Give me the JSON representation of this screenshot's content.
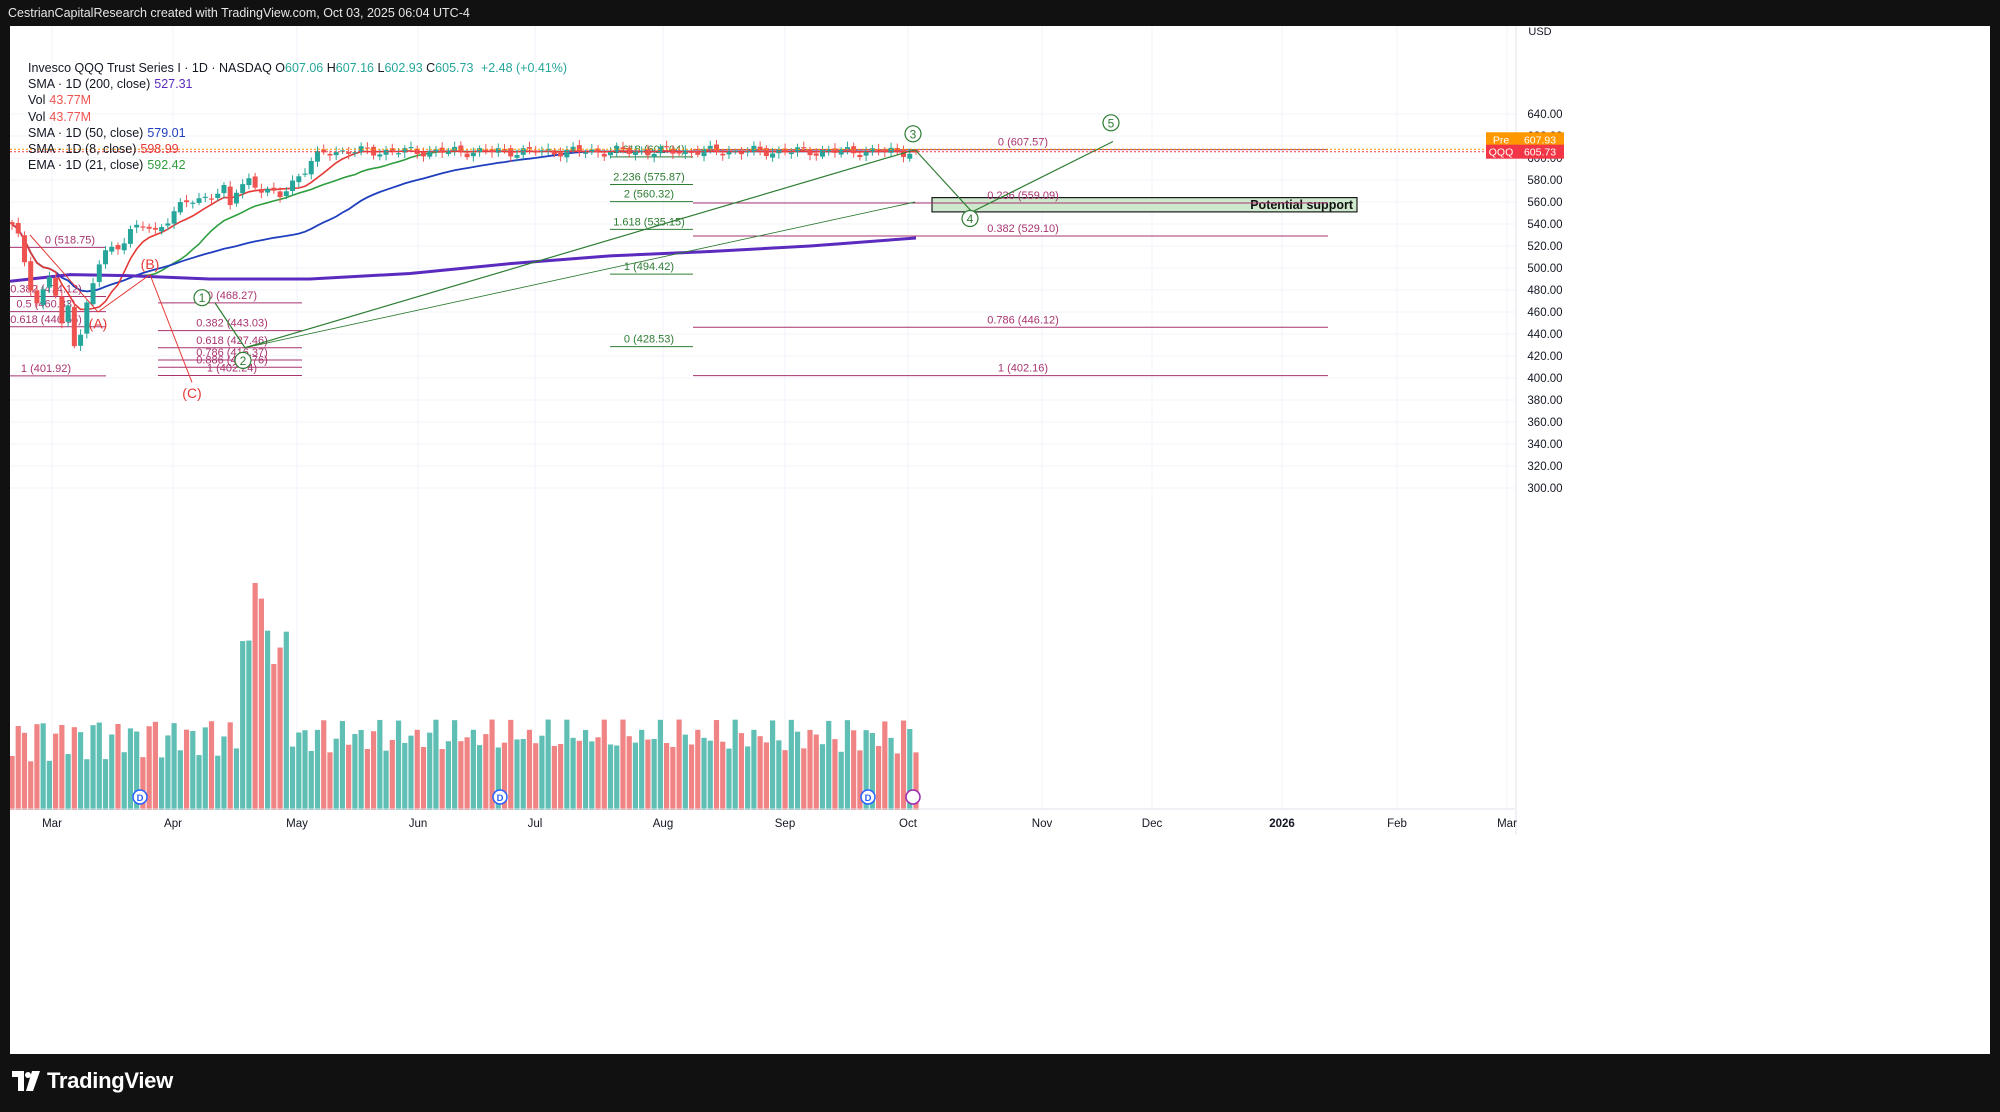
{
  "header": {
    "attribution": "CestrianCapitalResearch created with TradingView.com, Oct 03, 2025 06:04 UTC-4"
  },
  "legend": {
    "title": "Invesco QQQ Trust Series I · 1D · NASDAQ",
    "ohlc": [
      {
        "k": "O",
        "v": "607.06"
      },
      {
        "k": "H",
        "v": "607.16"
      },
      {
        "k": "L",
        "v": "602.93"
      },
      {
        "k": "C",
        "v": "605.73"
      }
    ],
    "change": "+2.48 (+0.41%)",
    "rows": [
      {
        "label": "SMA · 1D (200, close)",
        "value": "527.31",
        "color": "#5b2bbf"
      },
      {
        "label": "Vol",
        "value": "43.77M",
        "color": "#ef5350"
      },
      {
        "label": "Vol",
        "value": "43.77M",
        "color": "#ef5350"
      },
      {
        "label": "SMA · 1D (50, close)",
        "value": "579.01",
        "color": "#1f3fbf"
      },
      {
        "label": "SMA · 1D (8, close)",
        "value": "598.99",
        "color": "#e53935"
      },
      {
        "label": "EMA · 1D (21, close)",
        "value": "592.42",
        "color": "#2e9e3e"
      }
    ]
  },
  "axis": {
    "currency": "USD",
    "price_ticks": [
      "640.00",
      "620.00",
      "600.00",
      "580.00",
      "560.00",
      "540.00",
      "520.00",
      "500.00",
      "480.00",
      "460.00",
      "440.00",
      "420.00",
      "400.00",
      "380.00",
      "360.00",
      "340.00",
      "320.00",
      "300.00"
    ],
    "month_labels": [
      "Mar",
      "Apr",
      "May",
      "Jun",
      "Jul",
      "Aug",
      "Sep",
      "Oct",
      "Nov",
      "Dec",
      "2026",
      "Feb",
      "Mar"
    ],
    "tags": [
      {
        "name": "Pre",
        "value": "607.93",
        "color": "#ff9800"
      },
      {
        "name": "QQQ",
        "value": "605.73",
        "color": "#f23645"
      }
    ]
  },
  "annotations": {
    "support_label": "Potential support",
    "wave_labels": [
      "①",
      "②",
      "③",
      "④",
      "⑤",
      "(A)",
      "(B)",
      "(C)"
    ],
    "fib_left": [
      "0 (518.75)",
      "0.382 (474.12)",
      "0.5 (460.33)",
      "0.618 (446.55)",
      "1 (401.92)"
    ],
    "fib_mid": [
      "0 (468.27)",
      "0.382 (443.03)",
      "0.618 (427.46)",
      "0.786 (416.37)",
      "0.886 (409.76)",
      "1 (402.24)"
    ],
    "fib_ext": [
      "2.618 (601.04)",
      "2.236 (575.87)",
      "2 (560.32)",
      "1.618 (535.15)",
      "1 (494.42)",
      "0 (428.53)"
    ],
    "fib_right": [
      "0 (607.57)",
      "0.236 (559.09)",
      "0.382 (529.10)",
      "0.786 (446.12)",
      "1 (402.16)"
    ],
    "dividend_marker": "D"
  },
  "brand": {
    "name": "TradingView"
  },
  "colors": {
    "up": "#26a69a",
    "down": "#ef5350",
    "vol_up": "#5fbfb4",
    "vol_down": "#f08383",
    "sma200": "#5b2bbf",
    "sma50": "#1f3fbf",
    "sma8": "#e53935",
    "ema21": "#2e9e3e",
    "fib": "#a8336f",
    "wave_green": "#2e7d32",
    "wave_red": "#e53935",
    "support_fill": "#cde8cc"
  },
  "chart_data": {
    "type": "candlestick",
    "title": "Invesco QQQ Trust Series I · 1D · NASDAQ",
    "ylabel": "USD",
    "ylim": [
      300,
      645
    ],
    "grid": true,
    "y_scale": "linear",
    "x_months": [
      "Mar",
      "Apr",
      "May",
      "Jun",
      "Jul",
      "Aug",
      "Sep",
      "Oct",
      "Nov",
      "Dec",
      "2026",
      "Feb",
      "Mar"
    ],
    "close_key_points": [
      {
        "date": "2025-02-21",
        "close": 538.0
      },
      {
        "date": "2025-03-13",
        "close": 468.0
      },
      {
        "date": "2025-03-25",
        "close": 494.0
      },
      {
        "date": "2025-04-08",
        "close": 409.0
      },
      {
        "date": "2025-04-09",
        "close": 466.0
      },
      {
        "date": "2025-04-21",
        "close": 427.5
      },
      {
        "date": "2025-05-12",
        "close": 513.0
      },
      {
        "date": "2025-06-30",
        "close": 551.6
      },
      {
        "date": "2025-08-01",
        "close": 553.9
      },
      {
        "date": "2025-08-12",
        "close": 580.0
      },
      {
        "date": "2025-09-02",
        "close": 565.6
      },
      {
        "date": "2025-10-02",
        "close": 605.73
      }
    ],
    "latest": {
      "open": 607.06,
      "high": 607.16,
      "low": 602.93,
      "close": 605.73,
      "change": 2.48,
      "change_pct": 0.41,
      "premarket": 607.93
    },
    "moving_averages": [
      {
        "name": "SMA 200",
        "last": 527.31
      },
      {
        "name": "SMA 50",
        "last": 579.01
      },
      {
        "name": "SMA 8",
        "last": 598.99
      },
      {
        "name": "EMA 21",
        "last": 592.42
      }
    ],
    "volume": {
      "last": "43.77M"
    },
    "fib_levels_right": [
      607.57,
      559.09,
      529.1,
      446.12,
      402.16
    ],
    "support_zone": [
      551,
      564
    ]
  }
}
